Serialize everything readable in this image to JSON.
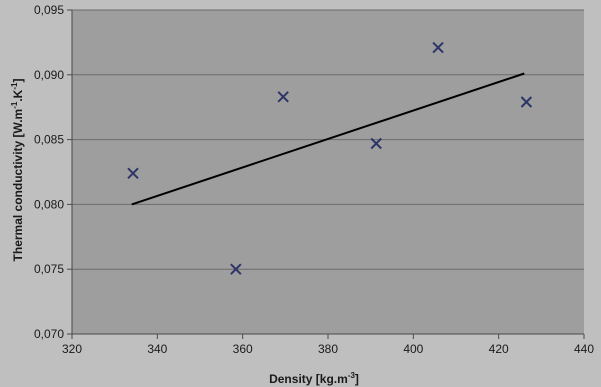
{
  "chart_data": {
    "type": "scatter",
    "title": "",
    "xlabel": {
      "base": "Density [kg.m",
      "sup": "-3",
      "close": "]"
    },
    "ylabel": {
      "p1": "Thermal conductivity [W.m",
      "s1": "-1",
      "p2": ".K",
      "s2": "-1",
      "p3": "]"
    },
    "xlim": [
      320,
      440
    ],
    "ylim": [
      0.07,
      0.095
    ],
    "x_ticks": [
      320,
      340,
      360,
      380,
      400,
      420,
      440
    ],
    "x_tick_labels": [
      "320",
      "340",
      "360",
      "380",
      "400",
      "420",
      "440"
    ],
    "y_ticks": [
      0.07,
      0.075,
      0.08,
      0.085,
      0.09,
      0.095
    ],
    "y_tick_labels": [
      "0,070",
      "0,075",
      "0,080",
      "0,085",
      "0,090",
      "0,095"
    ],
    "grid": "horizontal",
    "series": [
      {
        "marker": "x",
        "color": "#2e3566",
        "points": [
          {
            "x": 334.3,
            "y": 0.0824
          },
          {
            "x": 358.4,
            "y": 0.075
          },
          {
            "x": 369.5,
            "y": 0.0883
          },
          {
            "x": 391.3,
            "y": 0.0847
          },
          {
            "x": 405.8,
            "y": 0.0921
          },
          {
            "x": 426.5,
            "y": 0.0879
          }
        ]
      }
    ],
    "trendline": {
      "type": "linear",
      "color": "#000000",
      "from": {
        "x": 334.0,
        "y": 0.08
      },
      "to": {
        "x": 426.0,
        "y": 0.0901
      }
    }
  }
}
